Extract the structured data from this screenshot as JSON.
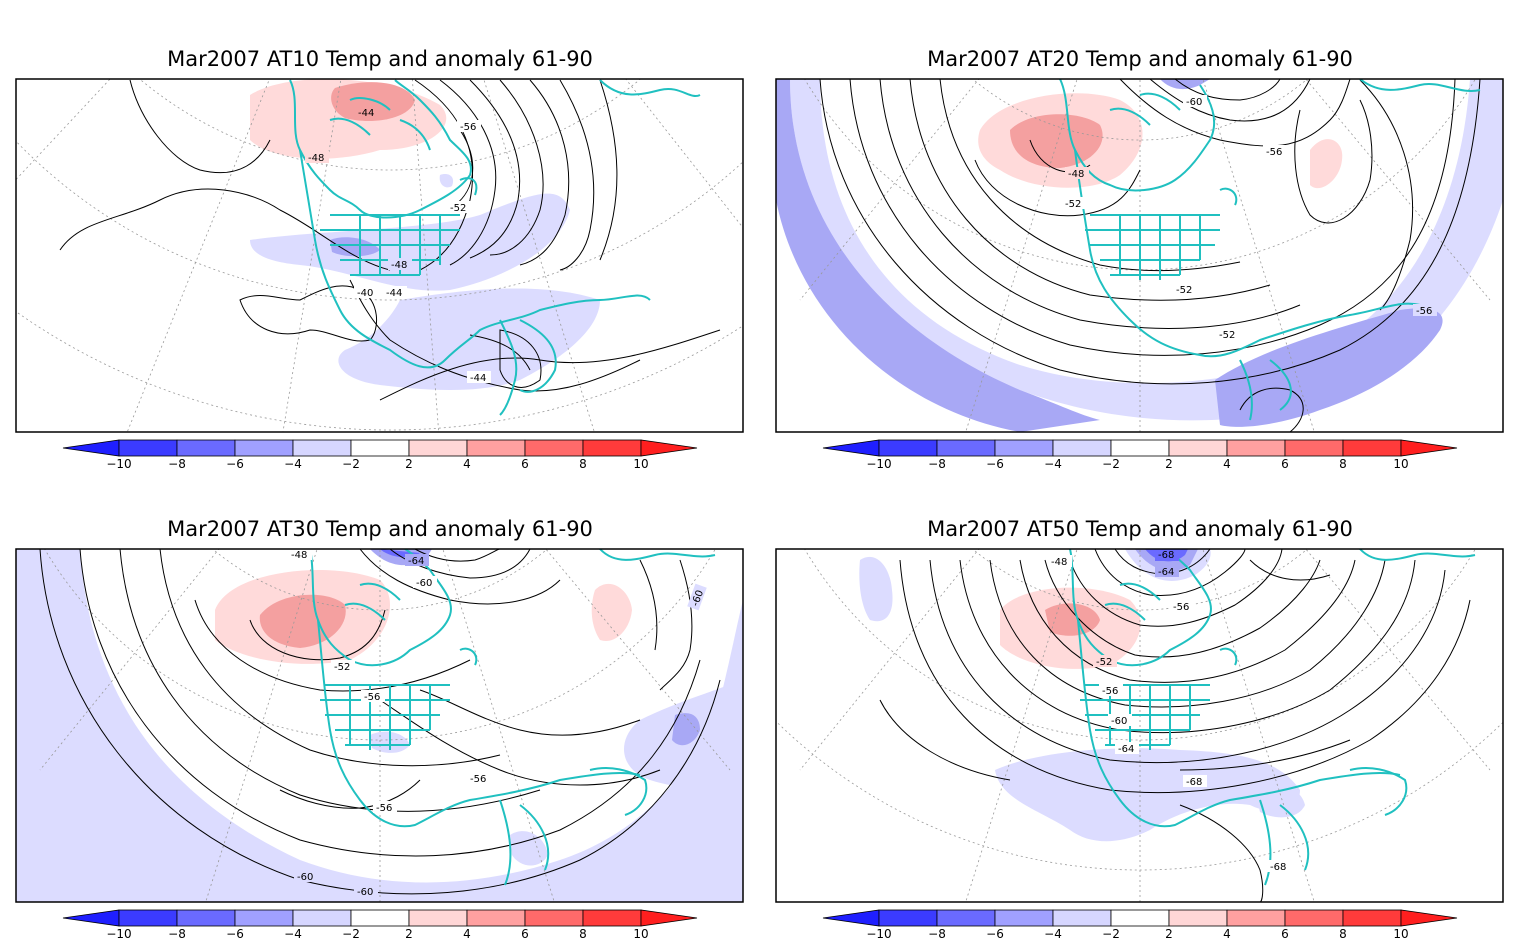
{
  "panels": [
    {
      "title": "Mar2007 AT10 Temp and anomaly 61-90",
      "contour_labels": [
        "-44",
        "-56",
        "-48",
        "-52",
        "-48",
        "-44",
        "-40",
        "-44"
      ]
    },
    {
      "title": "Mar2007 AT20 Temp and anomaly 61-90",
      "contour_labels": [
        "-60",
        "-56",
        "-48",
        "-52",
        "-52",
        "-52",
        "-56"
      ]
    },
    {
      "title": "Mar2007 AT30 Temp and anomaly 61-90",
      "contour_labels": [
        "-48",
        "-64",
        "-60",
        "-60",
        "-52",
        "-56",
        "-56",
        "-56",
        "-60",
        "-60"
      ]
    },
    {
      "title": "Mar2007 AT50 Temp and anomaly 61-90",
      "contour_labels": [
        "-48",
        "-68",
        "-64",
        "-56",
        "-52",
        "-56",
        "-60",
        "-64",
        "-68",
        "-68"
      ]
    }
  ],
  "colorbar": {
    "labels": [
      "-10",
      "-8",
      "-6",
      "-4",
      "-2",
      "2",
      "4",
      "6",
      "8",
      "10"
    ],
    "colors": [
      "#1f1fff",
      "#3b3bff",
      "#6a6aff",
      "#a0a0ff",
      "#d6d6ff",
      "#ffffff",
      "#ffd6d6",
      "#ffa0a0",
      "#ff6a6a",
      "#ff3b3b",
      "#ff1f1f"
    ]
  },
  "colors": {
    "coast": "#20c0c0",
    "contour": "#000000",
    "grid": "#999999",
    "neg_light": "#dcdcff",
    "neg_mid": "#a8a8f5",
    "neg_dark": "#7070ee",
    "pos_light": "#ffdada",
    "pos_mid": "#f4a0a0"
  }
}
